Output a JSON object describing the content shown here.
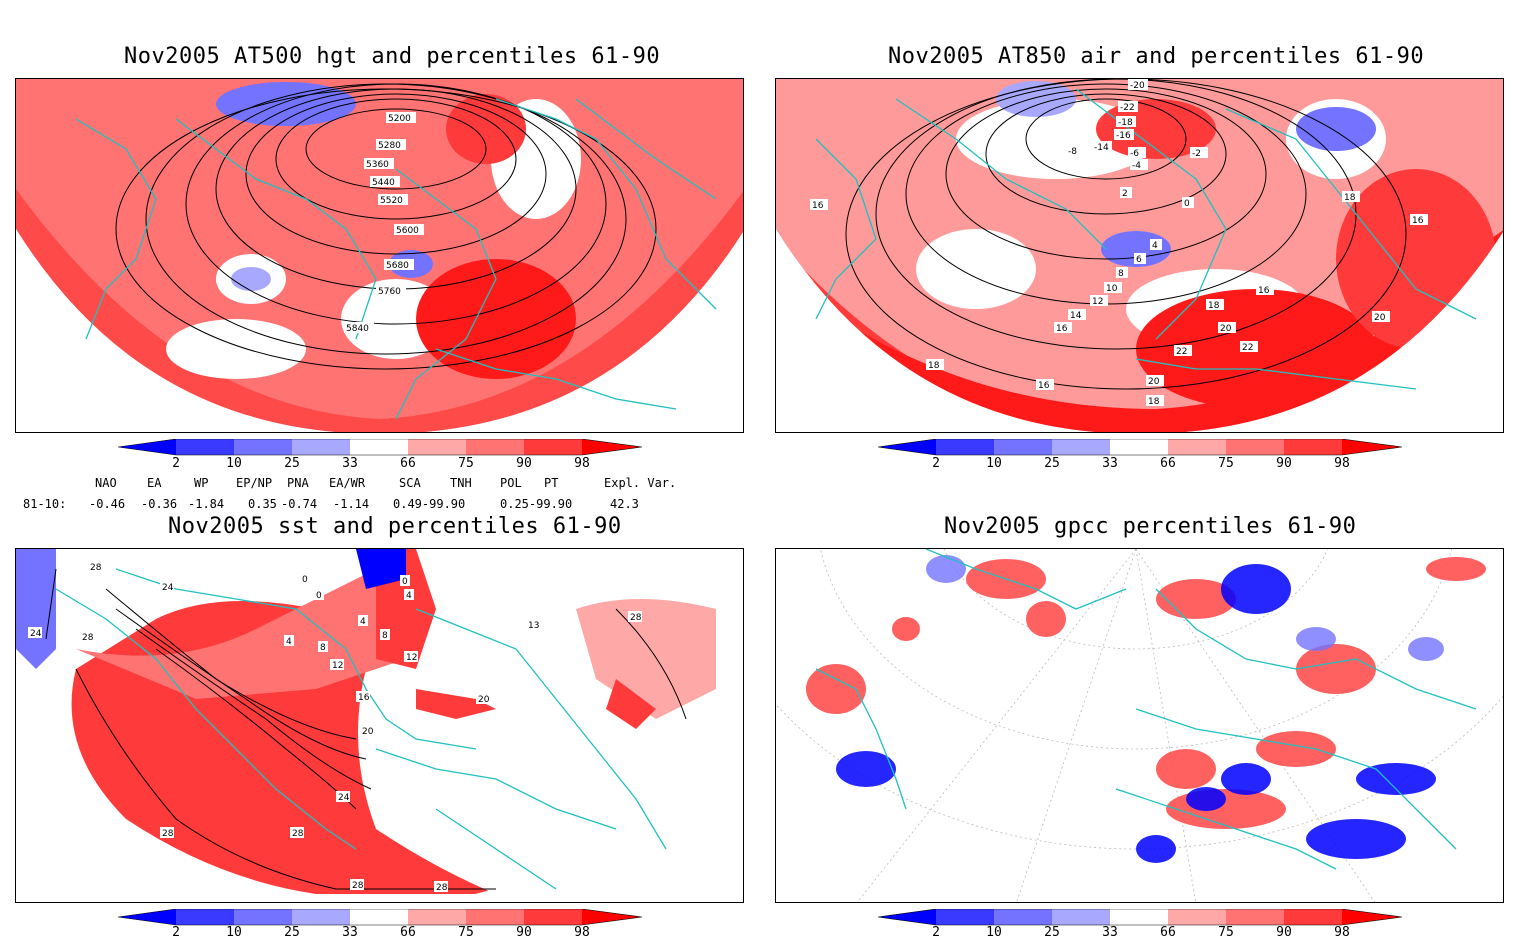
{
  "panels": {
    "p1": {
      "title": "Nov2005 AT500 hgt and percentiles 61-90",
      "contour_labels": [
        "5200",
        "5280",
        "5360",
        "5440",
        "5520",
        "5600",
        "5680",
        "5760",
        "5840"
      ]
    },
    "p2": {
      "title": "Nov2005 AT850 air and percentiles 61-90",
      "contour_labels": [
        "-20",
        "-22",
        "-18",
        "-16",
        "-14",
        "-8",
        "-6",
        "-4",
        "-2",
        "2",
        "0",
        "4",
        "6",
        "8",
        "10",
        "12",
        "14",
        "16",
        "18",
        "16",
        "20",
        "22",
        "22",
        "20",
        "18",
        "20",
        "16",
        "18",
        "16",
        "18",
        "16"
      ]
    },
    "p3": {
      "title": "Nov2005 sst and percentiles 61-90",
      "contour_labels": [
        "28",
        "24",
        "24",
        "28",
        "0",
        "0",
        "4",
        "0",
        "4",
        "4",
        "8",
        "13",
        "8",
        "12",
        "12",
        "16",
        "20",
        "20",
        "24",
        "28",
        "28",
        "28",
        "28",
        "28"
      ]
    },
    "p4": {
      "title": "Nov2005 gpcc percentiles 61-90"
    }
  },
  "colorbar": {
    "labels": [
      "2",
      "10",
      "25",
      "33",
      "66",
      "75",
      "90",
      "98"
    ],
    "colors": {
      "c1": "#0000ff",
      "c2": "#3a3aff",
      "c3": "#7373ff",
      "c4": "#a8a8ff",
      "white": "#ffffff",
      "w1": "#ffa8a8",
      "w2": "#ff7373",
      "w3": "#ff3a3a",
      "w4": "#ff0000"
    }
  },
  "indices": {
    "header": [
      "NAO",
      "EA",
      "WP",
      "EP/NP",
      "PNA",
      "EA/WR",
      "SCA",
      "TNH",
      "POL",
      "PT",
      "Expl. Var."
    ],
    "row_label": "81-10:",
    "values": [
      "-0.46",
      "-0.36",
      "-1.84",
      "0.35",
      "-0.74",
      "-1.14",
      "0.49-99.90",
      "0.25-99.90",
      "42.3"
    ]
  },
  "style": {
    "coast_color": "#20c0c0",
    "contour_color": "#000000"
  }
}
